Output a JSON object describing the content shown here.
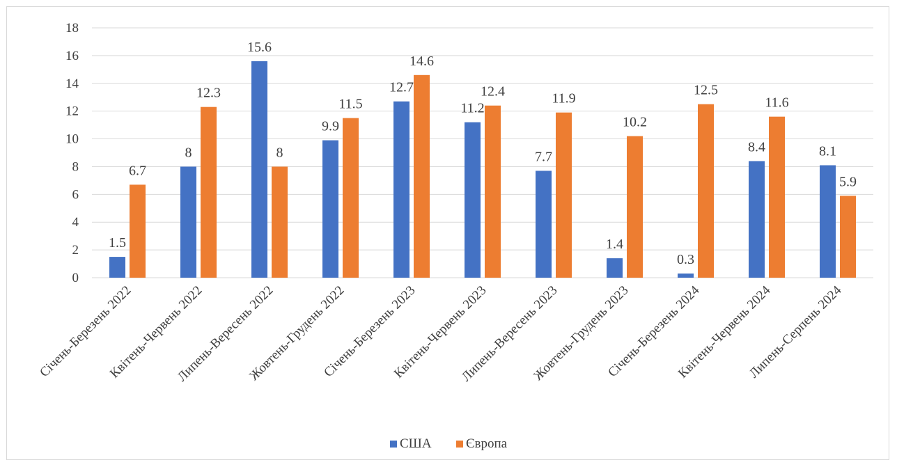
{
  "chart_data": {
    "type": "bar",
    "categories": [
      "Січень-Березень 2022",
      "Квітень-Червень 2022",
      "Липень-Вересень 2022",
      "Жовтень-Грудень 2022",
      "Січень-Березень 2023",
      "Квітень-Червень 2023",
      "Липень-Вересень 2023",
      "Жовтень-Грудень 2023",
      "Січень-Березень 2024",
      "Квітень-Червень 2024",
      "Липень-Серпень 2024"
    ],
    "series": [
      {
        "name": "США",
        "color": "#4472c4",
        "values": [
          1.5,
          8,
          15.6,
          9.9,
          12.7,
          11.2,
          7.7,
          1.4,
          0.3,
          8.4,
          8.1
        ]
      },
      {
        "name": "Європа",
        "color": "#ed7d31",
        "values": [
          6.7,
          12.3,
          8,
          11.5,
          14.6,
          12.4,
          11.9,
          10.2,
          12.5,
          11.6,
          5.9
        ]
      }
    ],
    "ylim": [
      0,
      18
    ],
    "yticks": [
      0,
      2,
      4,
      6,
      8,
      10,
      12,
      14,
      16,
      18
    ],
    "grid": true,
    "legend": "bottom",
    "gridColor": "#d9d9d9"
  }
}
